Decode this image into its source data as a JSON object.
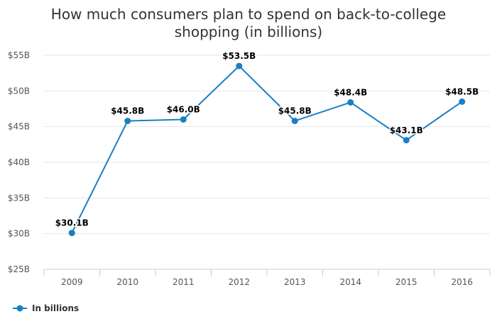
{
  "chart_data": {
    "type": "line",
    "title_lines": [
      "How much consumers plan to spend on back-to-college",
      "shopping (in billions)"
    ],
    "categories": [
      "2009",
      "2010",
      "2011",
      "2012",
      "2013",
      "2014",
      "2015",
      "2016"
    ],
    "series": [
      {
        "name": "In billions",
        "values": [
          30.1,
          45.8,
          46.0,
          53.5,
          45.8,
          48.4,
          43.1,
          48.5
        ],
        "data_labels": [
          "$30.1B",
          "$45.8B",
          "$46.0B",
          "$53.5B",
          "$45.8B",
          "$48.4B",
          "$43.1B",
          "$48.5B"
        ],
        "color": "#1a7fc4"
      }
    ],
    "yticks": [
      25,
      30,
      35,
      40,
      45,
      50,
      55
    ],
    "ytick_labels": [
      "$25B",
      "$30B",
      "$35B",
      "$40B",
      "$45B",
      "$50B",
      "$55B"
    ],
    "ylim": [
      25,
      55
    ],
    "xlabel": "",
    "ylabel": "",
    "grid": true,
    "legend_position": "bottom-left"
  },
  "colors": {
    "line": "#1a7fc4",
    "grid": "#e6e6e6",
    "axis": "#c0d0e0"
  }
}
